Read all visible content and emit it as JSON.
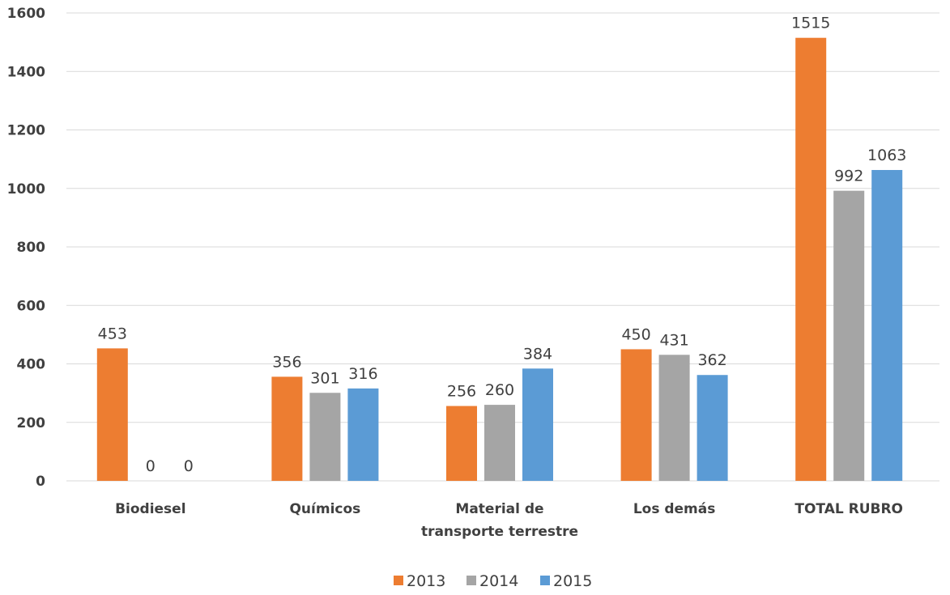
{
  "chart_data": {
    "type": "bar",
    "categories": [
      [
        "Biodiesel"
      ],
      [
        "Químicos"
      ],
      [
        "Material de",
        "transporte terrestre"
      ],
      [
        "Los demás"
      ],
      [
        "TOTAL RUBRO"
      ]
    ],
    "series": [
      {
        "name": "2013",
        "color": "#ED7D31",
        "values": [
          453,
          356,
          256,
          450,
          1515
        ]
      },
      {
        "name": "2014",
        "color": "#A5A5A5",
        "values": [
          0,
          301,
          260,
          431,
          992
        ]
      },
      {
        "name": "2015",
        "color": "#5B9BD5",
        "values": [
          0,
          316,
          384,
          362,
          1063
        ]
      }
    ],
    "data_labels": [
      [
        "453",
        "0",
        "0"
      ],
      [
        "356",
        "301",
        "316"
      ],
      [
        "256",
        "260",
        "384"
      ],
      [
        "450",
        "431",
        "362"
      ],
      [
        "1515",
        "992",
        "1063"
      ]
    ],
    "yticks": [
      "0",
      "200",
      "400",
      "600",
      "800",
      "1000",
      "1200",
      "1400",
      "1600"
    ],
    "ylim": [
      0,
      1600
    ],
    "grid": true,
    "legend": "bottom-center"
  }
}
